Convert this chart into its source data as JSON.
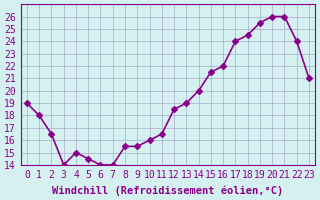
{
  "x": [
    0,
    1,
    2,
    3,
    4,
    5,
    6,
    7,
    8,
    9,
    10,
    11,
    12,
    13,
    14,
    15,
    16,
    17,
    18,
    19,
    20,
    21,
    22,
    23
  ],
  "y": [
    19,
    18,
    16.5,
    14,
    15,
    14.5,
    14,
    14,
    15.5,
    15.5,
    16,
    16.5,
    18.5,
    19,
    20,
    21.5,
    22,
    24,
    24.5,
    25.5,
    26,
    26,
    24,
    21
  ],
  "line_color": "#8B008B",
  "marker": "D",
  "marker_size": 3,
  "bg_color": "#d5f0f0",
  "grid_color": "#aaaacc",
  "xlabel": "Windchill (Refroidissement éolien,°C)",
  "ylim": [
    14,
    27
  ],
  "xlim": [
    -0.5,
    23.5
  ],
  "yticks": [
    14,
    15,
    16,
    17,
    18,
    19,
    20,
    21,
    22,
    23,
    24,
    25,
    26
  ],
  "xticks": [
    0,
    1,
    2,
    3,
    4,
    5,
    6,
    7,
    8,
    9,
    10,
    11,
    12,
    13,
    14,
    15,
    16,
    17,
    18,
    19,
    20,
    21,
    22,
    23
  ],
  "xlabel_fontsize": 7.5,
  "tick_fontsize": 7,
  "line_width": 1.2
}
